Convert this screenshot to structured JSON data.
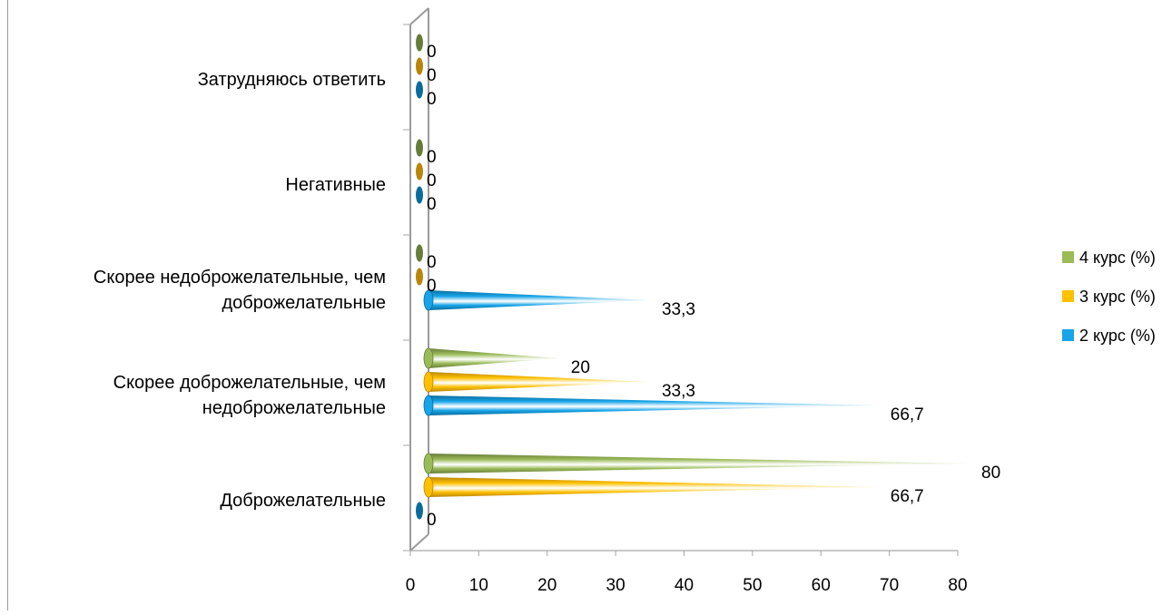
{
  "chart_data": {
    "type": "bar",
    "orientation": "horizontal",
    "categories": [
      "Доброжелательные",
      "Скорее доброжелательные, чем недоброжелательные",
      "Скорее недоброжелательные, чем доброжелательные",
      "Негативные",
      "Затрудняюсь ответить"
    ],
    "category_label_lines": [
      [
        "Доброжелательные"
      ],
      [
        "Скорее доброжелательные, чем",
        "недоброжелательные"
      ],
      [
        "Скорее недоброжелательные, чем",
        "доброжелательные"
      ],
      [
        "Негативные"
      ],
      [
        "Затрудняюсь ответить"
      ]
    ],
    "series": [
      {
        "name": "2 курс (%)",
        "color": "#17A4E8",
        "dark": "#0B6C9C",
        "values": [
          0,
          66.7,
          33.3,
          0,
          0
        ],
        "labels": [
          "0",
          "66,7",
          "33,3",
          "0",
          "0"
        ]
      },
      {
        "name": "3 курс (%)",
        "color": "#FFC000",
        "dark": "#B8860B",
        "values": [
          66.7,
          33.3,
          0,
          0,
          0
        ],
        "labels": [
          "66,7",
          "33,3",
          "0",
          "0",
          "0"
        ]
      },
      {
        "name": "4 курс (%)",
        "color": "#9BBB59",
        "dark": "#667C3A",
        "values": [
          80,
          20,
          0,
          0,
          0
        ],
        "labels": [
          "80",
          "20",
          "0",
          "0",
          "0"
        ]
      }
    ],
    "legend_order": [
      2,
      1,
      0
    ],
    "xlim": [
      0,
      80
    ],
    "xticks": [
      0,
      10,
      20,
      30,
      40,
      50,
      60,
      70,
      80
    ],
    "shape": "cone",
    "legend_position": "right",
    "gridlines": false
  }
}
